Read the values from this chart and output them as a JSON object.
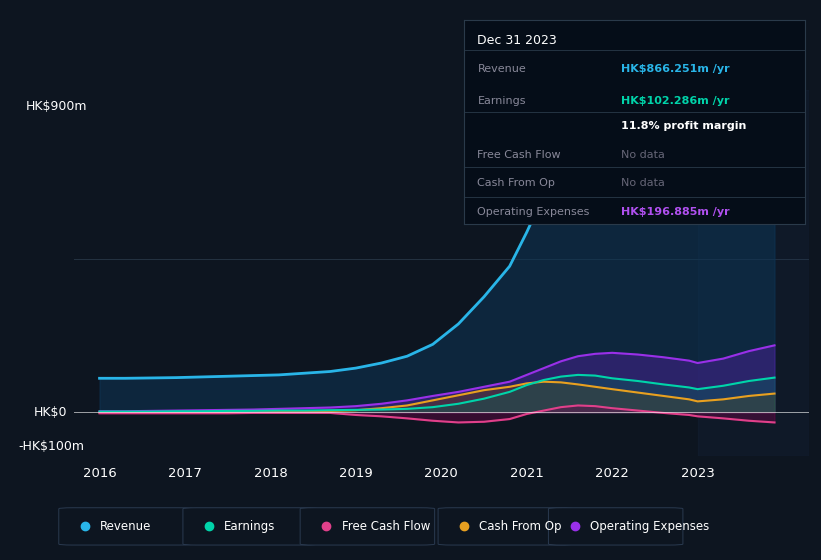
{
  "bg_color": "#0d1520",
  "plot_bg_color": "#0d1520",
  "years": [
    2016.0,
    2016.3,
    2016.6,
    2016.9,
    2017.2,
    2017.5,
    2017.8,
    2018.1,
    2018.4,
    2018.7,
    2019.0,
    2019.3,
    2019.6,
    2019.9,
    2020.2,
    2020.5,
    2020.8,
    2021.0,
    2021.2,
    2021.4,
    2021.6,
    2021.8,
    2022.0,
    2022.3,
    2022.6,
    2022.9,
    2023.0,
    2023.3,
    2023.6,
    2023.9
  ],
  "revenue": [
    100,
    100,
    101,
    102,
    104,
    106,
    108,
    110,
    115,
    120,
    130,
    145,
    165,
    200,
    260,
    340,
    430,
    530,
    640,
    710,
    755,
    760,
    750,
    720,
    680,
    640,
    625,
    700,
    800,
    866
  ],
  "earnings": [
    2,
    2,
    2,
    3,
    3,
    4,
    4,
    5,
    5,
    6,
    7,
    8,
    10,
    15,
    25,
    40,
    60,
    80,
    95,
    105,
    110,
    108,
    100,
    92,
    82,
    73,
    68,
    78,
    92,
    102
  ],
  "free_cash_flow": [
    -3,
    -3,
    -3,
    -3,
    -3,
    -3,
    -2,
    -2,
    -2,
    -2,
    -8,
    -12,
    -18,
    -25,
    -30,
    -28,
    -20,
    -5,
    5,
    15,
    20,
    18,
    12,
    5,
    -2,
    -8,
    -12,
    -18,
    -25,
    -30
  ],
  "cash_from_op": [
    -1,
    -1,
    -1,
    0,
    0,
    1,
    1,
    2,
    3,
    4,
    6,
    12,
    20,
    35,
    50,
    65,
    75,
    85,
    90,
    88,
    82,
    75,
    68,
    58,
    48,
    38,
    32,
    38,
    48,
    55
  ],
  "operating_expenses": [
    3,
    3,
    4,
    5,
    6,
    7,
    8,
    10,
    12,
    14,
    18,
    25,
    35,
    48,
    60,
    75,
    90,
    110,
    130,
    150,
    165,
    172,
    175,
    170,
    162,
    152,
    145,
    158,
    180,
    197
  ],
  "revenue_color": "#29b5e8",
  "earnings_color": "#00d4aa",
  "fcf_color": "#e0408a",
  "cashop_color": "#e8a020",
  "opex_color": "#9930e8",
  "revenue_fill": "#0e2d4a",
  "ylabel_top": "HK$900m",
  "ylabel_zero": "HK$0",
  "ylabel_neg": "-HK$100m",
  "x_ticks": [
    2016,
    2017,
    2018,
    2019,
    2020,
    2021,
    2022,
    2023
  ],
  "ylim_min": -130,
  "ylim_max": 950,
  "xlim_min": 2015.7,
  "xlim_max": 2024.3,
  "gridline_y": 450,
  "highlight_x_start": 2023.0,
  "info_box": {
    "title": "Dec 31 2023",
    "revenue_label": "Revenue",
    "revenue_value": "HK$866.251m /yr",
    "revenue_color": "#29b5e8",
    "earnings_label": "Earnings",
    "earnings_value": "HK$102.286m /yr",
    "earnings_color": "#00d4aa",
    "margin_text": "11.8% profit margin",
    "fcf_label": "Free Cash Flow",
    "fcf_value": "No data",
    "cashop_label": "Cash From Op",
    "cashop_value": "No data",
    "opex_label": "Operating Expenses",
    "opex_value": "HK$196.885m /yr",
    "opex_color": "#b050f0"
  },
  "legend_items": [
    {
      "label": "Revenue",
      "color": "#29b5e8"
    },
    {
      "label": "Earnings",
      "color": "#00d4aa"
    },
    {
      "label": "Free Cash Flow",
      "color": "#e0408a"
    },
    {
      "label": "Cash From Op",
      "color": "#e8a020"
    },
    {
      "label": "Operating Expenses",
      "color": "#9930e8"
    }
  ]
}
